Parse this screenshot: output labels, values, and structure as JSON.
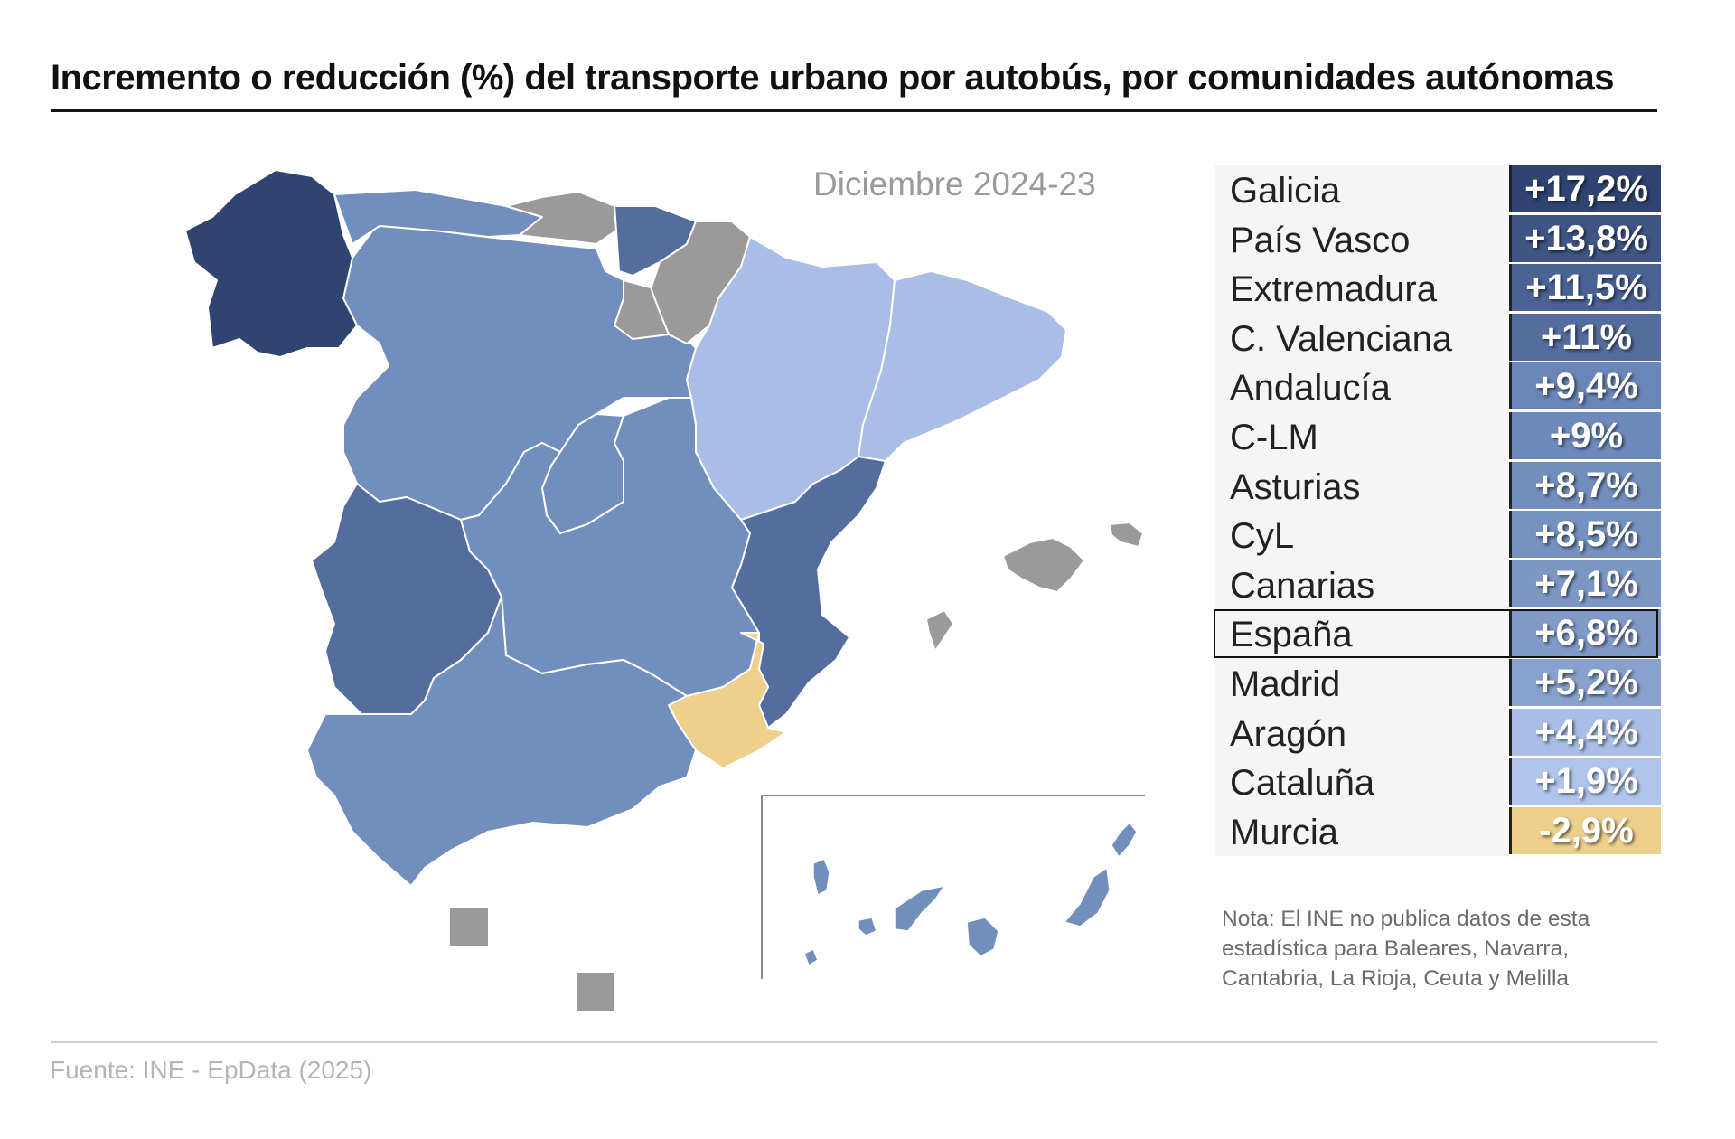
{
  "header": {
    "title": "Incremento o reducción (%) del transporte urbano por autobús, por comunidades autónomas",
    "subtitle": "Diciembre 2024-23"
  },
  "legend_colors": {
    "very_high": "#2f4470",
    "high": "#546c9e",
    "medium": "#728ebd",
    "low": "#a9bde7",
    "negative": "#ecd08c",
    "no_data": "#9a9a9a"
  },
  "ranking": [
    {
      "name": "Galicia",
      "value": "+17,2%",
      "color": "#2f4470"
    },
    {
      "name": "País Vasco",
      "value": "+13,8%",
      "color": "#3f5584"
    },
    {
      "name": "Extremadura",
      "value": "+11,5%",
      "color": "#4a6294"
    },
    {
      "name": "C. Valenciana",
      "value": "+11%",
      "color": "#546c9e"
    },
    {
      "name": "Andalucía",
      "value": "+9,4%",
      "color": "#6a85b7"
    },
    {
      "name": "C-LM",
      "value": "+9%",
      "color": "#6e89bb"
    },
    {
      "name": "Asturias",
      "value": "+8,7%",
      "color": "#728ebd"
    },
    {
      "name": "CyL",
      "value": "+8,5%",
      "color": "#7491bf"
    },
    {
      "name": "Canarias",
      "value": "+7,1%",
      "color": "#7d97c4"
    },
    {
      "name": "España",
      "value": "+6,8%",
      "color": "#8099c6",
      "highlight": true
    },
    {
      "name": "Madrid",
      "value": "+5,2%",
      "color": "#88a1cd"
    },
    {
      "name": "Aragón",
      "value": "+4,4%",
      "color": "#a9bde7"
    },
    {
      "name": "Cataluña",
      "value": "+1,9%",
      "color": "#b0c4ec"
    },
    {
      "name": "Murcia",
      "value": "-2,9%",
      "color": "#ecd08c"
    }
  ],
  "note": "Nota: El INE no publica datos de esta estadística para Baleares, Navarra, Cantabria, La Rioja, Ceuta y Melilla",
  "source": "Fuente: INE - EpData (2025)"
}
